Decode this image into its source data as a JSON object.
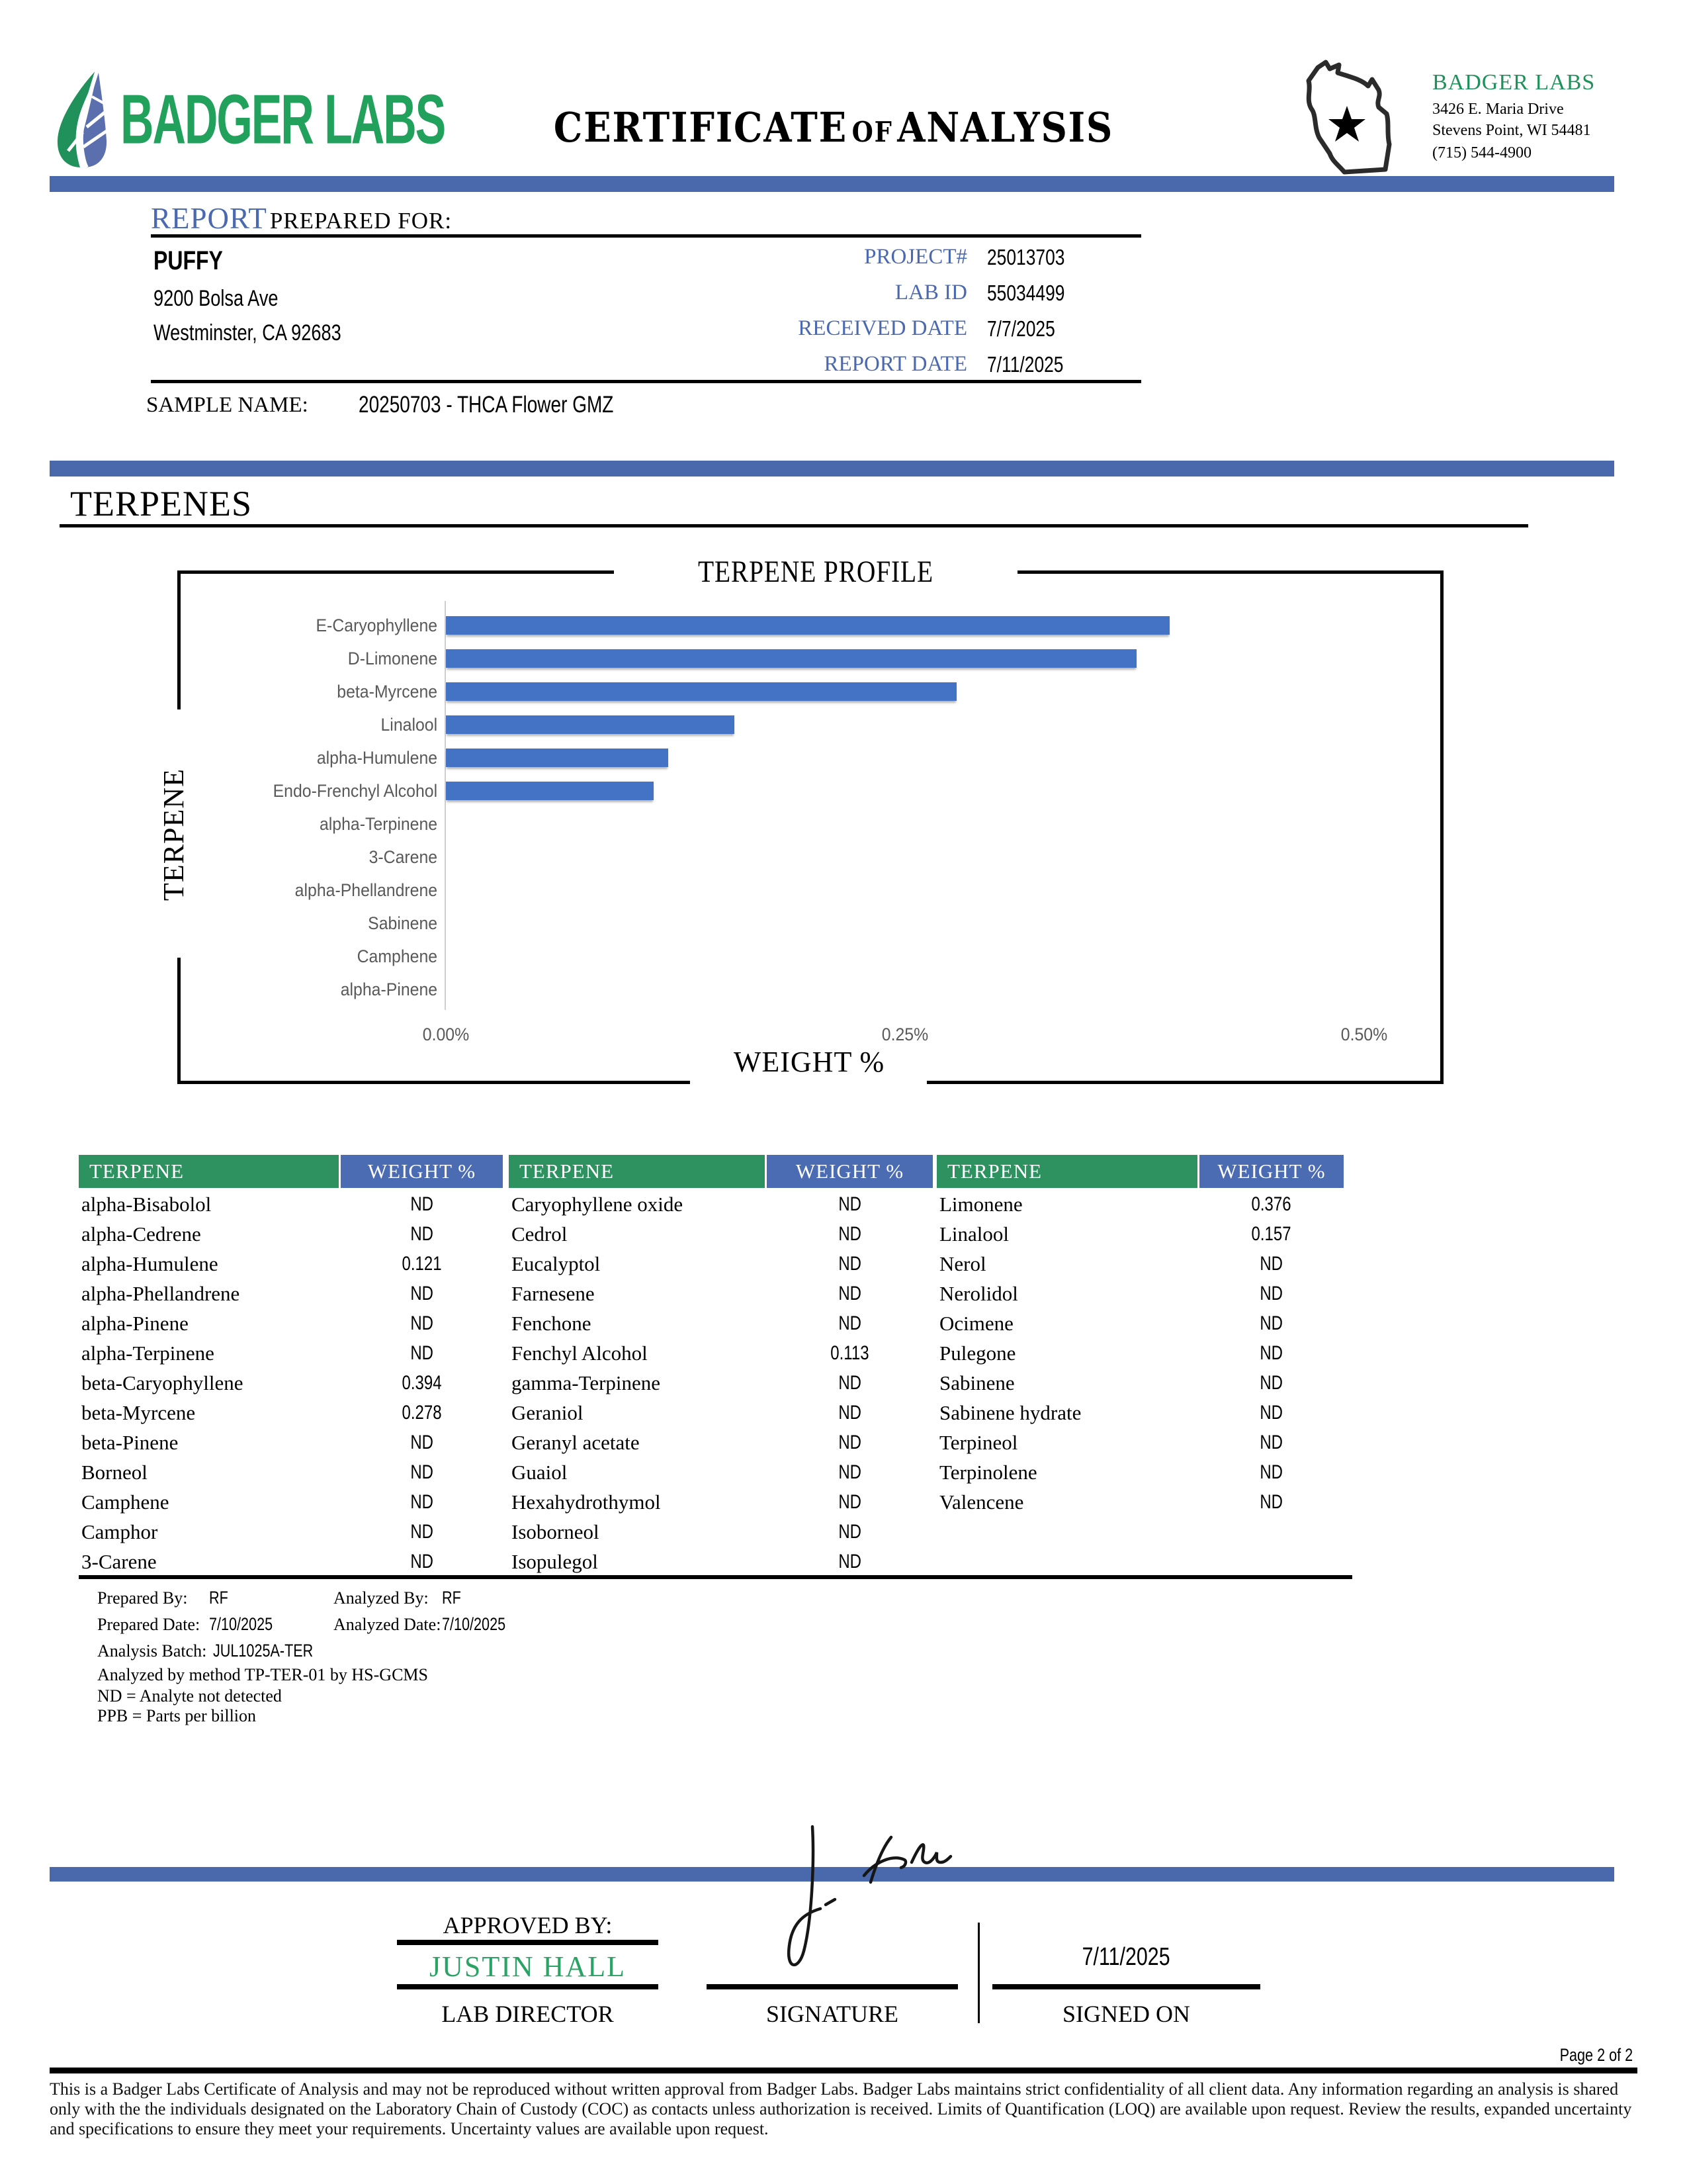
{
  "header": {
    "brand": "BADGER LABS",
    "title_part1": "CERTIFICATE",
    "title_of": "OF",
    "title_part2": "ANALYSIS",
    "lab_name": "BADGER LABS",
    "address_line1": "3426 E. Maria Drive",
    "address_line2": "Stevens Point, WI 54481",
    "phone": "(715) 544-4900"
  },
  "report": {
    "section_label": "REPORT",
    "prepared_for_label": "PREPARED FOR:",
    "client_name": "PUFFY",
    "client_address1": "9200 Bolsa Ave",
    "client_address2": "Westminster, CA 92683",
    "fields": [
      {
        "label": "PROJECT#",
        "value": "25013703"
      },
      {
        "label": "LAB ID",
        "value": "55034499"
      },
      {
        "label": "RECEIVED DATE",
        "value": "7/7/2025"
      },
      {
        "label": "REPORT DATE",
        "value": "7/11/2025"
      }
    ],
    "sample_name_label": "SAMPLE NAME:",
    "sample_name": "20250703 - THCA Flower GMZ"
  },
  "section_heading": "TERPENES",
  "chart_data": {
    "type": "bar",
    "orientation": "horizontal",
    "title": "TERPENE PROFILE",
    "xlabel": "WEIGHT %",
    "ylabel": "TERPENE",
    "categories": [
      "E-Caryophyllene",
      "D-Limonene",
      "beta-Myrcene",
      "Linalool",
      "alpha-Humulene",
      "Endo-Frenchyl Alcohol",
      "alpha-Terpinene",
      "3-Carene",
      "alpha-Phellandrene",
      "Sabinene",
      "Camphene",
      "alpha-Pinene"
    ],
    "values": [
      0.394,
      0.376,
      0.278,
      0.157,
      0.121,
      0.113,
      0,
      0,
      0,
      0,
      0,
      0
    ],
    "xlim": [
      0,
      0.5
    ],
    "xticks": [
      "0.00%",
      "0.25%",
      "0.50%"
    ],
    "grid": false,
    "bar_color": "#4472c4"
  },
  "table": {
    "terpene_header": "TERPENE",
    "weight_header": "WEIGHT %",
    "columns": [
      {
        "rows": [
          {
            "name": "alpha-Bisabolol",
            "value": "ND"
          },
          {
            "name": "alpha-Cedrene",
            "value": "ND"
          },
          {
            "name": "alpha-Humulene",
            "value": "0.121"
          },
          {
            "name": "alpha-Phellandrene",
            "value": "ND"
          },
          {
            "name": "alpha-Pinene",
            "value": "ND"
          },
          {
            "name": "alpha-Terpinene",
            "value": "ND"
          },
          {
            "name": "beta-Caryophyllene",
            "value": "0.394"
          },
          {
            "name": "beta-Myrcene",
            "value": "0.278"
          },
          {
            "name": "beta-Pinene",
            "value": "ND"
          },
          {
            "name": "Borneol",
            "value": "ND"
          },
          {
            "name": "Camphene",
            "value": "ND"
          },
          {
            "name": "Camphor",
            "value": "ND"
          },
          {
            "name": "3-Carene",
            "value": "ND"
          }
        ]
      },
      {
        "rows": [
          {
            "name": "Caryophyllene oxide",
            "value": "ND"
          },
          {
            "name": "Cedrol",
            "value": "ND"
          },
          {
            "name": "Eucalyptol",
            "value": "ND"
          },
          {
            "name": "Farnesene",
            "value": "ND"
          },
          {
            "name": "Fenchone",
            "value": "ND"
          },
          {
            "name": "Fenchyl Alcohol",
            "value": "0.113"
          },
          {
            "name": "gamma-Terpinene",
            "value": "ND"
          },
          {
            "name": "Geraniol",
            "value": "ND"
          },
          {
            "name": "Geranyl acetate",
            "value": "ND"
          },
          {
            "name": "Guaiol",
            "value": "ND"
          },
          {
            "name": "Hexahydrothymol",
            "value": "ND"
          },
          {
            "name": "Isoborneol",
            "value": "ND"
          },
          {
            "name": "Isopulegol",
            "value": "ND"
          }
        ]
      },
      {
        "rows": [
          {
            "name": "Limonene",
            "value": "0.376"
          },
          {
            "name": "Linalool",
            "value": "0.157"
          },
          {
            "name": "Nerol",
            "value": "ND"
          },
          {
            "name": "Nerolidol",
            "value": "ND"
          },
          {
            "name": "Ocimene",
            "value": "ND"
          },
          {
            "name": "Pulegone",
            "value": "ND"
          },
          {
            "name": "Sabinene",
            "value": "ND"
          },
          {
            "name": "Sabinene hydrate",
            "value": "ND"
          },
          {
            "name": "Terpineol",
            "value": "ND"
          },
          {
            "name": "Terpinolene",
            "value": "ND"
          },
          {
            "name": "Valencene",
            "value": "ND"
          }
        ]
      }
    ]
  },
  "meta": {
    "prepared_by_label": "Prepared By:",
    "prepared_by": "RF",
    "analyzed_by_label": "Analyzed By:",
    "analyzed_by": "RF",
    "prepared_date_label": "Prepared Date:",
    "prepared_date": "7/10/2025",
    "analyzed_date_label": "Analyzed Date:",
    "analyzed_date": "7/10/2025",
    "batch_label": "Analysis Batch:",
    "batch": "JUL1025A-TER",
    "method_note": "Analyzed by method TP-TER-01 by HS-GCMS",
    "nd_note": "ND = Analyte not detected",
    "ppb_note": "PPB = Parts per billion"
  },
  "approval": {
    "approved_by_label": "APPROVED BY:",
    "approver_name": "JUSTIN HALL",
    "approver_role": "LAB DIRECTOR",
    "signature_label": "SIGNATURE",
    "signed_on_label": "SIGNED ON",
    "signed_date": "7/11/2025"
  },
  "footer": {
    "page_label": "Page 2 of 2",
    "disclaimer": "This is a Badger Labs Certificate of Analysis and may not be reproduced without written approval from Badger Labs. Badger Labs maintains strict confidentiality of all client data. Any information regarding an analysis is shared only with the the individuals designated on the Laboratory Chain of Custody (COC) as contacts unless authorization is received. Limits of Quantification (LOQ) are available upon request. Review the results, expanded uncertainty and specifications to ensure they meet your requirements. Uncertainty values are available upon request."
  },
  "colors": {
    "brand_green": "#21a15c",
    "table_header_green": "#2e9160",
    "table_header_blue": "#4b6bb2",
    "divider_blue": "#4a69ad",
    "label_blue": "#4a69b0",
    "bar_blue": "#4472c4",
    "chart_text_gray": "#595959"
  }
}
